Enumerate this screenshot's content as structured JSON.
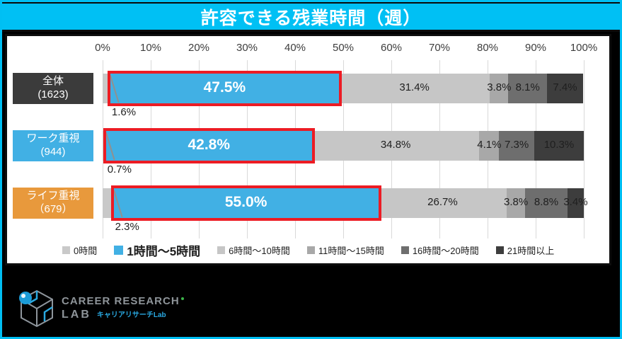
{
  "title": "許容できる残業時間（週）",
  "colors": {
    "accent_cyan": "#00C0F4",
    "highlight_red": "#EC1C24",
    "bar_blue": "#41B0E4",
    "category_dark": "#3B3B3B",
    "category_blue": "#41B0E4",
    "category_orange": "#E8993C",
    "gridline": "#d9d9d9"
  },
  "chart_data": {
    "type": "bar",
    "stacked": true,
    "orientation": "horizontal",
    "title": "許容できる残業時間（週）",
    "unit": "%",
    "x_axis": {
      "range": [
        0,
        100
      ],
      "ticks": [
        "0%",
        "10%",
        "20%",
        "30%",
        "40%",
        "50%",
        "60%",
        "70%",
        "80%",
        "90%",
        "100%"
      ],
      "grid": true
    },
    "categories": [
      {
        "label": "全体",
        "count": "(1623)",
        "color": "#3B3B3B"
      },
      {
        "label": "ワーク重視",
        "count": "(944)",
        "color": "#41B0E4"
      },
      {
        "label": "ライフ重視",
        "count": "（679）",
        "color": "#E8993C"
      }
    ],
    "series": [
      {
        "name": "0時間",
        "color": "#C9C9C9",
        "values": [
          1.6,
          0.7,
          2.3
        ],
        "label_below_bar": true
      },
      {
        "name": "1時間～5時間",
        "color": "#41B0E4",
        "values": [
          47.5,
          42.8,
          55.0
        ],
        "highlighted": true
      },
      {
        "name": "6時間～10時間",
        "color": "#C6C6C6",
        "values": [
          31.4,
          34.8,
          26.7
        ]
      },
      {
        "name": "11時間～15時間",
        "color": "#A8A8A8",
        "values": [
          3.8,
          4.1,
          3.8
        ]
      },
      {
        "name": "16時間～20時間",
        "color": "#6E6E6E",
        "values": [
          8.1,
          7.3,
          8.8
        ]
      },
      {
        "name": "21時間以上",
        "color": "#3D3D3D",
        "values": [
          7.4,
          10.3,
          3.4
        ]
      }
    ],
    "value_label_format": "one_decimal_percent",
    "legend_position": "bottom"
  },
  "logo": {
    "line1": "CAREER RESEARCH",
    "line2": "LAB",
    "subtitle": "キャリアリサーチLab"
  }
}
